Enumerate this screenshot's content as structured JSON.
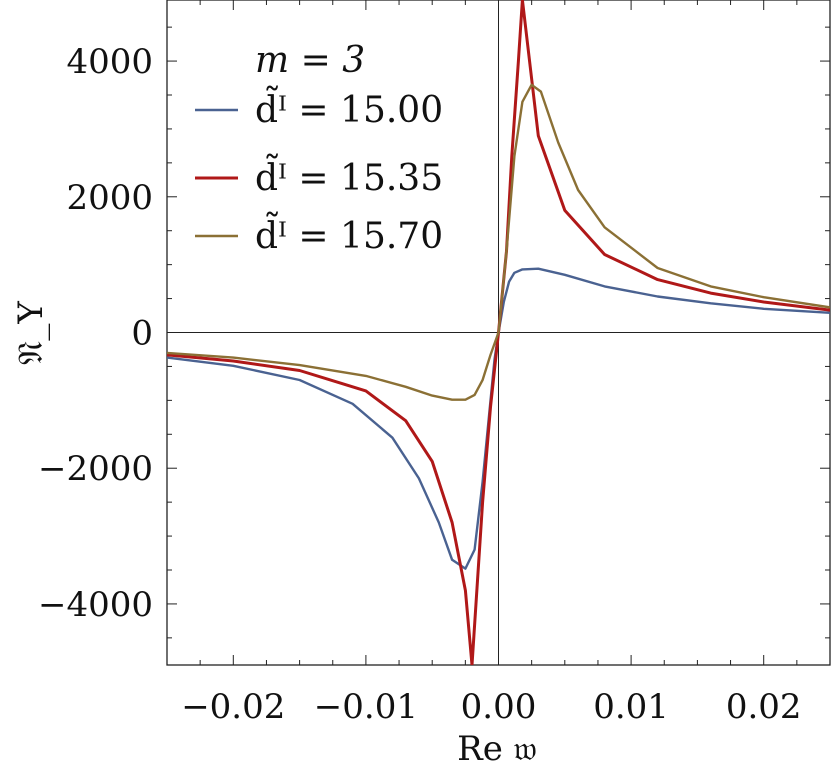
{
  "chart_data": {
    "type": "line",
    "title": "",
    "xlabel": "Re 𝔴",
    "ylabel": "𝔑_Y",
    "xlim": [
      -0.025,
      0.025
    ],
    "ylim": [
      -4900,
      4900
    ],
    "xticks": [
      -0.02,
      -0.01,
      0.0,
      0.01,
      0.02
    ],
    "xtick_labels": [
      "−0.02",
      "−0.01",
      "0.00",
      "0.01",
      "0.02"
    ],
    "yticks": [
      -4000,
      -2000,
      0,
      2000,
      4000
    ],
    "ytick_labels": [
      "−4000",
      "−2000",
      "0",
      "2000",
      "4000"
    ],
    "grid": false,
    "legend_title": "m = 3",
    "legend_placement": "top-left",
    "series": [
      {
        "name": "d̃ᴵ = 15.00",
        "color": "#4a6291",
        "points": [
          [
            -0.025,
            -370
          ],
          [
            -0.02,
            -490
          ],
          [
            -0.015,
            -700
          ],
          [
            -0.011,
            -1050
          ],
          [
            -0.008,
            -1550
          ],
          [
            -0.006,
            -2150
          ],
          [
            -0.0045,
            -2800
          ],
          [
            -0.0035,
            -3350
          ],
          [
            -0.0025,
            -3480
          ],
          [
            -0.0018,
            -3200
          ],
          [
            -0.0012,
            -2200
          ],
          [
            -0.0007,
            -1200
          ],
          [
            -0.0003,
            -400
          ],
          [
            0,
            0
          ],
          [
            0.0004,
            450
          ],
          [
            0.0008,
            750
          ],
          [
            0.0012,
            880
          ],
          [
            0.0018,
            930
          ],
          [
            0.003,
            940
          ],
          [
            0.005,
            850
          ],
          [
            0.008,
            680
          ],
          [
            0.012,
            530
          ],
          [
            0.016,
            430
          ],
          [
            0.02,
            350
          ],
          [
            0.025,
            290
          ]
        ]
      },
      {
        "name": "d̃ᴵ = 15.35",
        "color": "#b01818",
        "points": [
          [
            -0.025,
            -330
          ],
          [
            -0.02,
            -420
          ],
          [
            -0.015,
            -560
          ],
          [
            -0.01,
            -860
          ],
          [
            -0.007,
            -1300
          ],
          [
            -0.005,
            -1900
          ],
          [
            -0.0035,
            -2800
          ],
          [
            -0.0025,
            -3800
          ],
          [
            -0.002,
            -4900
          ],
          [
            -0.0012,
            -2500
          ],
          [
            -0.0006,
            -1100
          ],
          [
            0,
            0
          ],
          [
            0.0006,
            1200
          ],
          [
            0.001,
            2600
          ],
          [
            0.0015,
            4000
          ],
          [
            0.0018,
            4900
          ],
          [
            0.003,
            2900
          ],
          [
            0.005,
            1800
          ],
          [
            0.008,
            1150
          ],
          [
            0.012,
            780
          ],
          [
            0.016,
            580
          ],
          [
            0.02,
            450
          ],
          [
            0.025,
            330
          ]
        ]
      },
      {
        "name": "d̃ᴵ = 15.70",
        "color": "#8b7035",
        "points": [
          [
            -0.025,
            -300
          ],
          [
            -0.02,
            -370
          ],
          [
            -0.015,
            -480
          ],
          [
            -0.01,
            -640
          ],
          [
            -0.007,
            -800
          ],
          [
            -0.005,
            -930
          ],
          [
            -0.0035,
            -990
          ],
          [
            -0.0025,
            -990
          ],
          [
            -0.0018,
            -920
          ],
          [
            -0.0012,
            -700
          ],
          [
            -0.0006,
            -330
          ],
          [
            0,
            0
          ],
          [
            0.0006,
            1200
          ],
          [
            0.0012,
            2600
          ],
          [
            0.0018,
            3400
          ],
          [
            0.0025,
            3650
          ],
          [
            0.0032,
            3550
          ],
          [
            0.0045,
            2800
          ],
          [
            0.006,
            2100
          ],
          [
            0.008,
            1550
          ],
          [
            0.012,
            950
          ],
          [
            0.016,
            680
          ],
          [
            0.02,
            520
          ],
          [
            0.025,
            370
          ]
        ]
      }
    ]
  }
}
